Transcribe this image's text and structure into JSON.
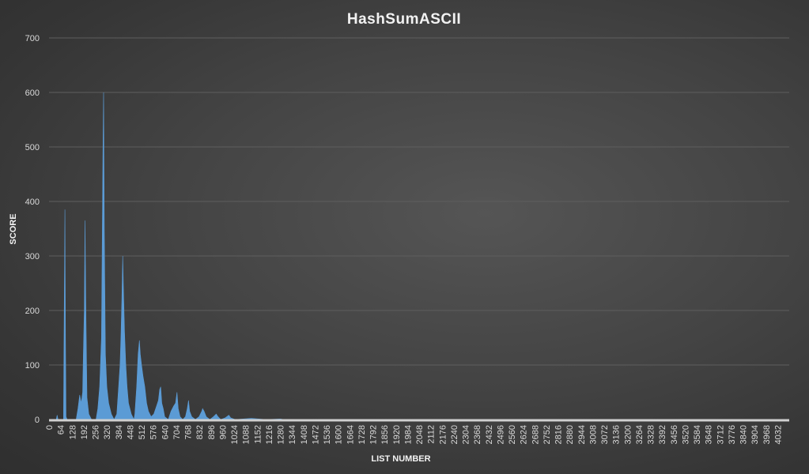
{
  "chart_data": {
    "type": "area",
    "title": "HashSumASCII",
    "xlabel": "LIST NUMBER",
    "ylabel": "SCORE",
    "ylim": [
      0,
      700
    ],
    "yticks": [
      0,
      100,
      200,
      300,
      400,
      500,
      600,
      700
    ],
    "xlim": [
      0,
      4095
    ],
    "xtick_step": 64,
    "xticks": [
      0,
      64,
      128,
      192,
      256,
      320,
      384,
      448,
      512,
      576,
      640,
      704,
      768,
      832,
      896,
      960,
      1024,
      1088,
      1152,
      1216,
      1280,
      1344,
      1408,
      1472,
      1536,
      1600,
      1664,
      1728,
      1792,
      1856,
      1920,
      1984,
      2048,
      2112,
      2176,
      2240,
      2304,
      2368,
      2432,
      2496,
      2560,
      2624,
      2688,
      2752,
      2816,
      2880,
      2944,
      3008,
      3072,
      3136,
      3200,
      3264,
      3328,
      3392,
      3456,
      3520,
      3584,
      3648,
      3712,
      3776,
      3840,
      3904,
      3968,
      4032
    ],
    "grid": true,
    "legend": "none",
    "series_color": "#5b9bd5",
    "baseline_color": "#d0d0d0",
    "points": [
      [
        0,
        0
      ],
      [
        40,
        0
      ],
      [
        45,
        8
      ],
      [
        50,
        0
      ],
      [
        80,
        0
      ],
      [
        84,
        200
      ],
      [
        88,
        385
      ],
      [
        91,
        150
      ],
      [
        94,
        5
      ],
      [
        100,
        0
      ],
      [
        150,
        0
      ],
      [
        160,
        20
      ],
      [
        170,
        45
      ],
      [
        178,
        30
      ],
      [
        186,
        50
      ],
      [
        190,
        120
      ],
      [
        195,
        200
      ],
      [
        199,
        365
      ],
      [
        204,
        200
      ],
      [
        210,
        40
      ],
      [
        220,
        10
      ],
      [
        235,
        0
      ],
      [
        260,
        0
      ],
      [
        270,
        20
      ],
      [
        280,
        60
      ],
      [
        290,
        150
      ],
      [
        298,
        480
      ],
      [
        302,
        600
      ],
      [
        306,
        350
      ],
      [
        312,
        120
      ],
      [
        320,
        60
      ],
      [
        330,
        30
      ],
      [
        345,
        10
      ],
      [
        360,
        0
      ],
      [
        375,
        10
      ],
      [
        385,
        60
      ],
      [
        393,
        100
      ],
      [
        398,
        150
      ],
      [
        403,
        220
      ],
      [
        408,
        300
      ],
      [
        412,
        240
      ],
      [
        418,
        160
      ],
      [
        425,
        100
      ],
      [
        432,
        60
      ],
      [
        440,
        30
      ],
      [
        455,
        10
      ],
      [
        470,
        0
      ],
      [
        475,
        10
      ],
      [
        485,
        60
      ],
      [
        493,
        120
      ],
      [
        500,
        145
      ],
      [
        505,
        120
      ],
      [
        512,
        100
      ],
      [
        520,
        80
      ],
      [
        530,
        60
      ],
      [
        540,
        30
      ],
      [
        550,
        15
      ],
      [
        565,
        5
      ],
      [
        580,
        10
      ],
      [
        595,
        25
      ],
      [
        605,
        35
      ],
      [
        612,
        55
      ],
      [
        618,
        60
      ],
      [
        624,
        30
      ],
      [
        632,
        20
      ],
      [
        640,
        5
      ],
      [
        660,
        0
      ],
      [
        675,
        15
      ],
      [
        690,
        25
      ],
      [
        700,
        30
      ],
      [
        708,
        50
      ],
      [
        715,
        20
      ],
      [
        725,
        5
      ],
      [
        740,
        0
      ],
      [
        755,
        5
      ],
      [
        765,
        20
      ],
      [
        772,
        35
      ],
      [
        778,
        15
      ],
      [
        790,
        5
      ],
      [
        810,
        0
      ],
      [
        830,
        5
      ],
      [
        845,
        15
      ],
      [
        850,
        20
      ],
      [
        858,
        15
      ],
      [
        870,
        5
      ],
      [
        890,
        0
      ],
      [
        910,
        5
      ],
      [
        925,
        10
      ],
      [
        935,
        5
      ],
      [
        950,
        0
      ],
      [
        975,
        3
      ],
      [
        995,
        8
      ],
      [
        1005,
        3
      ],
      [
        1030,
        0
      ],
      [
        1120,
        2
      ],
      [
        1200,
        0
      ],
      [
        1280,
        1
      ],
      [
        1300,
        0
      ],
      [
        4095,
        0
      ]
    ]
  }
}
